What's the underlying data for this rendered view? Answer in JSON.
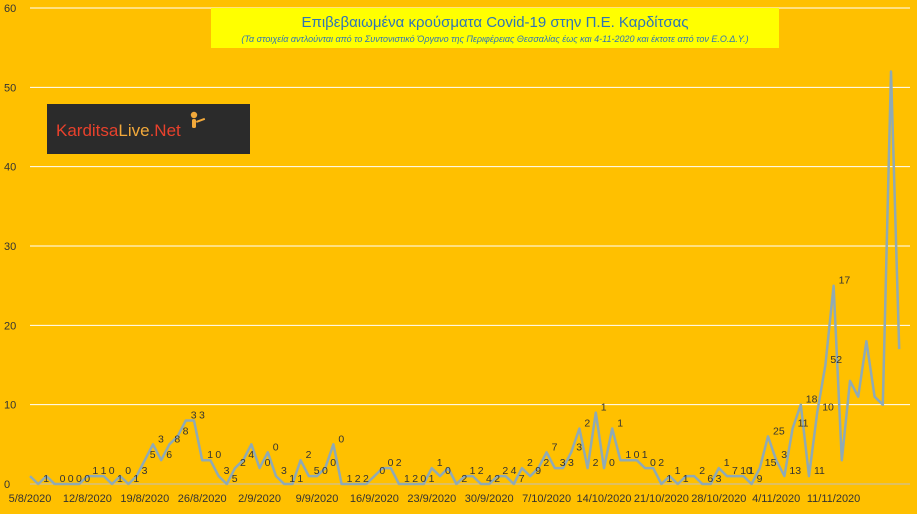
{
  "chart_data": {
    "type": "line",
    "title": "Επιβεβαιωμένα κρούσματα Covid-19 στην Π.Ε. Καρδίτσας",
    "subtitle": "(Τα στοιχεία αντλούνται από το Συντονιστικό Όργανο της Περιφέρειας Θεσσαλίας έως και 4-11-2020 και έκτοτε από τον Ε.Ο.Δ.Υ.)",
    "xlabel": "",
    "ylabel": "",
    "ylim": [
      0,
      60
    ],
    "yticks": [
      0,
      10,
      20,
      30,
      40,
      50,
      60
    ],
    "xlim": [
      "5/8/2020",
      "11/11/2020"
    ],
    "xtick_labels": [
      "5/8/2020",
      "12/8/2020",
      "19/8/2020",
      "26/8/2020",
      "2/9/2020",
      "9/9/2020",
      "16/9/2020",
      "23/9/2020",
      "30/9/2020",
      "7/10/2020",
      "14/10/2020",
      "21/10/2020",
      "28/10/2020",
      "4/11/2020",
      "11/11/2020"
    ],
    "grid": true,
    "line_color": "#8FAAB5",
    "start_date": "5/8/2020",
    "series": [
      {
        "name": "",
        "values": [
          1,
          0,
          1,
          0,
          0,
          0,
          0,
          1,
          1,
          1,
          0,
          1,
          0,
          1,
          3,
          5,
          3,
          5,
          6,
          8,
          8,
          3,
          3,
          1,
          0,
          2,
          3,
          5,
          2,
          4,
          1,
          0,
          0,
          3,
          1,
          1,
          2,
          5,
          0,
          0,
          0,
          0,
          1,
          2,
          2,
          0,
          0,
          0,
          0,
          2,
          1,
          2,
          0,
          1,
          1,
          0,
          0,
          1,
          1,
          0,
          2,
          1,
          2,
          4,
          2,
          2,
          4,
          7,
          2,
          9,
          2,
          7,
          3,
          3,
          3,
          2,
          2,
          0,
          1,
          0,
          1,
          1,
          0,
          0,
          2,
          1,
          1,
          1,
          0,
          2,
          6,
          3,
          1,
          7,
          10,
          1,
          9,
          15,
          25,
          3,
          13,
          11,
          18,
          11,
          10,
          52,
          17
        ]
      }
    ],
    "data_labels": [
      {
        "text": "1",
        "x": "6/8/2020"
      },
      {
        "text": "0",
        "x": "8/8/2020"
      },
      {
        "text": "0",
        "x": "9/8/2020"
      },
      {
        "text": "0",
        "x": "10/8/2020"
      },
      {
        "text": "0",
        "x": "11/8/2020"
      },
      {
        "text": "1",
        "x": "12/8/2020"
      },
      {
        "text": "1",
        "x": "13/8/2020"
      },
      {
        "text": "0",
        "x": "14/8/2020"
      },
      {
        "text": "1",
        "x": "15/8/2020"
      },
      {
        "text": "0",
        "x": "16/8/2020"
      },
      {
        "text": "1",
        "x": "17/8/2020"
      },
      {
        "text": "3",
        "x": "18/8/2020"
      },
      {
        "text": "5",
        "x": "19/8/2020"
      },
      {
        "text": "3",
        "x": "20/8/2020"
      },
      {
        "text": "6",
        "x": "21/8/2020"
      },
      {
        "text": "8",
        "x": "22/8/2020"
      },
      {
        "text": "8",
        "x": "23/8/2020"
      },
      {
        "text": "3",
        "x": "24/8/2020"
      },
      {
        "text": "3",
        "x": "25/8/2020"
      },
      {
        "text": "1",
        "x": "26/8/2020"
      },
      {
        "text": "0",
        "x": "27/8/2020"
      },
      {
        "text": "3",
        "x": "28/8/2020"
      },
      {
        "text": "5",
        "x": "29/8/2020"
      },
      {
        "text": "2",
        "x": "30/8/2020"
      },
      {
        "text": "4",
        "x": "31/8/2020"
      },
      {
        "text": "0",
        "x": "2/9/2020"
      },
      {
        "text": "0",
        "x": "3/9/2020"
      },
      {
        "text": "3",
        "x": "4/9/2020"
      },
      {
        "text": "1",
        "x": "5/9/2020"
      },
      {
        "text": "1",
        "x": "6/9/2020"
      },
      {
        "text": "2",
        "x": "7/9/2020"
      },
      {
        "text": "5",
        "x": "8/9/2020"
      },
      {
        "text": "0",
        "x": "9/9/2020"
      },
      {
        "text": "0",
        "x": "10/9/2020"
      },
      {
        "text": "0",
        "x": "11/9/2020"
      },
      {
        "text": "1",
        "x": "12/9/2020"
      },
      {
        "text": "2",
        "x": "13/9/2020"
      },
      {
        "text": "2",
        "x": "14/9/2020"
      },
      {
        "text": "0",
        "x": "16/9/2020"
      },
      {
        "text": "0",
        "x": "17/9/2020"
      },
      {
        "text": "2",
        "x": "18/9/2020"
      },
      {
        "text": "1",
        "x": "19/9/2020"
      },
      {
        "text": "2",
        "x": "20/9/2020"
      },
      {
        "text": "0",
        "x": "21/9/2020"
      },
      {
        "text": "1",
        "x": "22/9/2020"
      },
      {
        "text": "1",
        "x": "23/9/2020"
      },
      {
        "text": "0",
        "x": "24/9/2020"
      },
      {
        "text": "2",
        "x": "26/9/2020"
      },
      {
        "text": "1",
        "x": "27/9/2020"
      },
      {
        "text": "2",
        "x": "28/9/2020"
      },
      {
        "text": "4",
        "x": "29/9/2020"
      },
      {
        "text": "2",
        "x": "30/9/2020"
      },
      {
        "text": "2",
        "x": "1/10/2020"
      },
      {
        "text": "4",
        "x": "2/10/2020"
      },
      {
        "text": "7",
        "x": "3/10/2020"
      },
      {
        "text": "2",
        "x": "4/10/2020"
      },
      {
        "text": "9",
        "x": "5/10/2020"
      },
      {
        "text": "2",
        "x": "6/10/2020"
      },
      {
        "text": "7",
        "x": "7/10/2020"
      },
      {
        "text": "3",
        "x": "8/10/2020"
      },
      {
        "text": "3",
        "x": "9/10/2020"
      },
      {
        "text": "3",
        "x": "10/10/2020"
      },
      {
        "text": "2",
        "x": "11/10/2020"
      },
      {
        "text": "2",
        "x": "12/10/2020"
      },
      {
        "text": "1",
        "x": "13/10/2020"
      },
      {
        "text": "0",
        "x": "14/10/2020"
      },
      {
        "text": "1",
        "x": "15/10/2020"
      },
      {
        "text": "1",
        "x": "16/10/2020"
      },
      {
        "text": "0",
        "x": "17/10/2020"
      },
      {
        "text": "1",
        "x": "18/10/2020"
      },
      {
        "text": "0",
        "x": "19/10/2020"
      },
      {
        "text": "2",
        "x": "20/10/2020"
      },
      {
        "text": "1",
        "x": "21/10/2020"
      },
      {
        "text": "1",
        "x": "22/10/2020"
      },
      {
        "text": "1",
        "x": "23/10/2020"
      },
      {
        "text": "2",
        "x": "25/10/2020"
      },
      {
        "text": "6",
        "x": "26/10/2020"
      },
      {
        "text": "3",
        "x": "27/10/2020"
      },
      {
        "text": "1",
        "x": "28/10/2020"
      },
      {
        "text": "7",
        "x": "29/10/2020"
      },
      {
        "text": "10",
        "x": "30/10/2020"
      },
      {
        "text": "1",
        "x": "31/10/2020"
      },
      {
        "text": "9",
        "x": "1/11/2020"
      },
      {
        "text": "15",
        "x": "2/11/2020"
      },
      {
        "text": "25",
        "x": "3/11/2020"
      },
      {
        "text": "3",
        "x": "4/11/2020"
      },
      {
        "text": "13",
        "x": "5/11/2020"
      },
      {
        "text": "11",
        "x": "6/11/2020"
      },
      {
        "text": "18",
        "x": "7/11/2020"
      },
      {
        "text": "11",
        "x": "8/11/2020"
      },
      {
        "text": "10",
        "x": "9/11/2020"
      },
      {
        "text": "52",
        "x": "10/11/2020"
      },
      {
        "text": "17",
        "x": "11/11/2020"
      }
    ]
  },
  "watermark": {
    "text": "KarditsaLive.Net",
    "colors": {
      "karditsa": "#E8412C",
      "live": "#F2A93B",
      "net": "#E8412C",
      "background": "#2B2B2B"
    }
  },
  "colors": {
    "background": "#FFC000",
    "grid": "#FFFFFF",
    "title_box": "#FFFF00",
    "title_text": "#2E75B6",
    "text": "#333333"
  }
}
